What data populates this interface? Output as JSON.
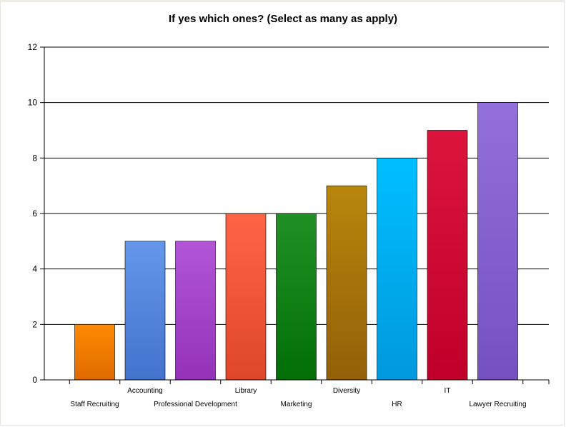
{
  "chart_data": {
    "type": "bar",
    "title": "If yes which ones? (Select as many as apply)",
    "xlabel": "",
    "ylabel": "",
    "ylim": [
      0,
      12
    ],
    "yticks": [
      0,
      2,
      4,
      6,
      8,
      10,
      12
    ],
    "grid": true,
    "legend": "none",
    "categories": [
      "Staff Recruiting",
      "Accounting",
      "Professional Development",
      "Library",
      "Marketing",
      "Diversity",
      "HR",
      "IT",
      "Lawyer Recruiting"
    ],
    "values": [
      2,
      5,
      5,
      6,
      6,
      7,
      8,
      9,
      10
    ],
    "colors": [
      [
        "#ff8a00",
        "#e06a00"
      ],
      [
        "#6497ea",
        "#4472cc"
      ],
      [
        "#b255d6",
        "#9433b8"
      ],
      [
        "#ff6447",
        "#e0462a"
      ],
      [
        "#219126",
        "#016f05"
      ],
      [
        "#b9860c",
        "#936009"
      ],
      [
        "#00bfff",
        "#0099dd"
      ],
      [
        "#dc143c",
        "#c0002a"
      ],
      [
        "#9370db",
        "#7550c0"
      ]
    ]
  }
}
